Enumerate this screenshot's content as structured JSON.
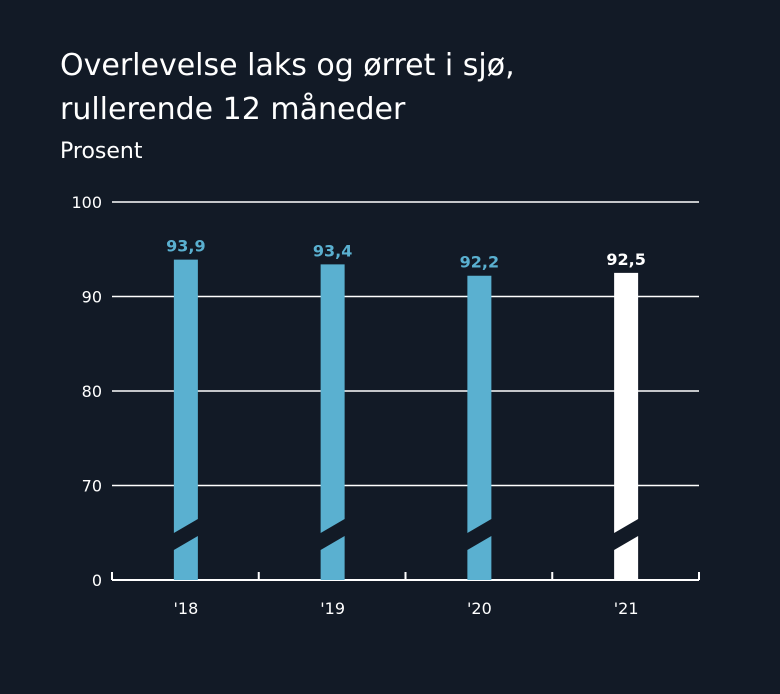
{
  "title_lines": [
    "Overlevelse laks og ørret i sjø,",
    "rullerende 12 måneder"
  ],
  "subtitle": "Prosent",
  "colors": {
    "background": "#121a26",
    "bar": "#5ab0d0",
    "highlight": "#ffffff",
    "grid": "#ffffff",
    "text": "#ffffff"
  },
  "chart_data": {
    "type": "bar",
    "title": "Overlevelse laks og ørret i sjø, rullerende 12 måneder",
    "ylabel": "Prosent",
    "categories": [
      "'18",
      "'19",
      "'20",
      "'21"
    ],
    "values": [
      93.9,
      93.4,
      92.2,
      92.5
    ],
    "value_labels": [
      "93,9",
      "93,4",
      "92,2",
      "92,5"
    ],
    "highlight_index": 3,
    "y_ticks": [
      0,
      70,
      80,
      90,
      100
    ],
    "y_tick_labels": [
      "0",
      "70",
      "80",
      "90",
      "100"
    ],
    "ylim": [
      60,
      100
    ],
    "axis_break": true,
    "grid": true
  }
}
